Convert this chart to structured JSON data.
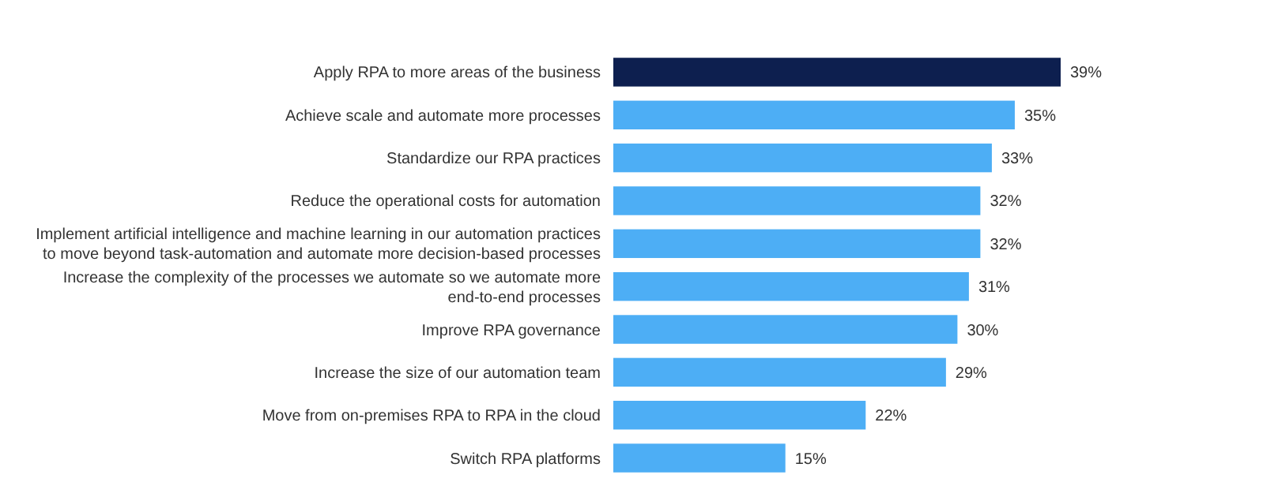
{
  "chart_data": {
    "type": "bar",
    "orientation": "horizontal",
    "data_labels": true,
    "categories": [
      "Apply RPA to more areas of the business",
      "Achieve scale and automate more processes",
      "Standardize our RPA practices",
      "Reduce the operational costs for automation",
      "Implement artificial intelligence and machine learning in our automation practices to move beyond task-automation and automate more decision-based processes",
      "Increase the complexity of the processes we automate so we automate more end-to-end processes",
      "Improve RPA governance",
      "Increase the size of our automation team",
      "Move from on-premises RPA to RPA in the cloud",
      "Switch RPA platforms"
    ],
    "values": [
      39,
      35,
      33,
      32,
      32,
      31,
      30,
      29,
      22,
      15
    ],
    "value_labels": [
      "39%",
      "35%",
      "33%",
      "32%",
      "32%",
      "31%",
      "30%",
      "29%",
      "22%",
      "15%"
    ],
    "colors": [
      "#0d1f4f",
      "#4daef5",
      "#4daef5",
      "#4daef5",
      "#4daef5",
      "#4daef5",
      "#4daef5",
      "#4daef5",
      "#4daef5",
      "#4daef5"
    ]
  }
}
